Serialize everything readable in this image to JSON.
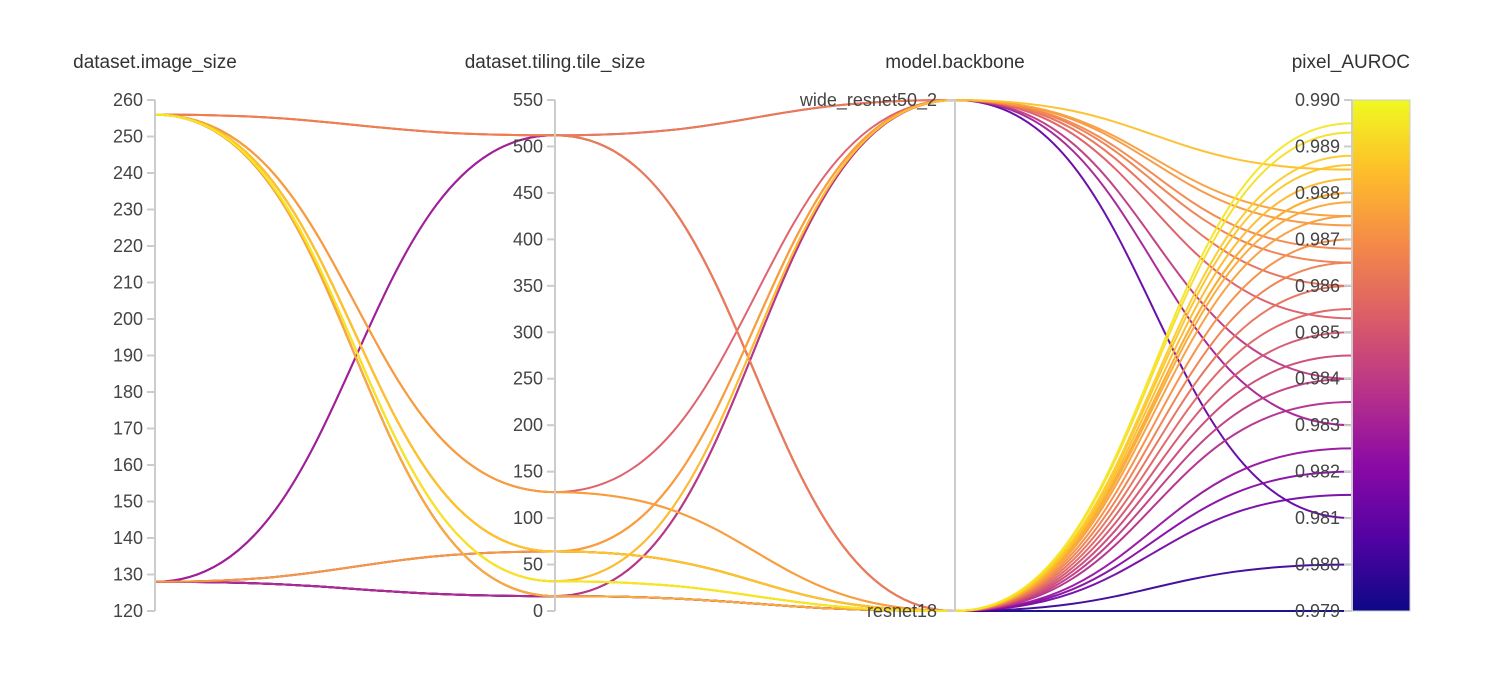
{
  "chart_data": {
    "type": "parallel_coordinates",
    "axes": [
      {
        "key": "image_size",
        "label": "dataset.image_size",
        "kind": "numeric",
        "range": [
          120,
          260
        ],
        "ticks": [
          "120",
          "130",
          "140",
          "150",
          "160",
          "170",
          "180",
          "190",
          "200",
          "210",
          "220",
          "230",
          "240",
          "250",
          "260"
        ]
      },
      {
        "key": "tile_size",
        "label": "dataset.tiling.tile_size",
        "kind": "numeric",
        "range": [
          0,
          550
        ],
        "ticks": [
          "0",
          "50",
          "100",
          "150",
          "200",
          "250",
          "300",
          "350",
          "400",
          "450",
          "500",
          "550"
        ]
      },
      {
        "key": "backbone",
        "label": "model.backbone",
        "kind": "categorical",
        "categories": [
          "resnet18",
          "wide_resnet50_2"
        ]
      },
      {
        "key": "pixel_auroc",
        "label": "pixel_AUROC",
        "kind": "numeric",
        "range": [
          0.979,
          0.99
        ],
        "ticks": [
          "0.979",
          "0.980",
          "0.981",
          "0.982",
          "0.983",
          "0.984",
          "0.985",
          "0.986",
          "0.987",
          "0.988",
          "0.989",
          "0.990"
        ]
      }
    ],
    "colorscale": {
      "metric": "pixel_auroc",
      "range": [
        0.979,
        0.99
      ],
      "stops": [
        "#0d0887",
        "#5302a3",
        "#8b0aa5",
        "#b83289",
        "#db5c68",
        "#f48849",
        "#febd2a",
        "#f0f921"
      ]
    },
    "runs": [
      {
        "image_size": 256,
        "tile_size": 512,
        "backbone": "wide_resnet50_2",
        "pixel_auroc": 0.9865
      },
      {
        "image_size": 256,
        "tile_size": 512,
        "backbone": "resnet18",
        "pixel_auroc": 0.9865
      },
      {
        "image_size": 256,
        "tile_size": 512,
        "backbone": "resnet18",
        "pixel_auroc": 0.985
      },
      {
        "image_size": 256,
        "tile_size": 128,
        "backbone": "wide_resnet50_2",
        "pixel_auroc": 0.9853
      },
      {
        "image_size": 256,
        "tile_size": 128,
        "backbone": "resnet18",
        "pixel_auroc": 0.9875
      },
      {
        "image_size": 256,
        "tile_size": 64,
        "backbone": "wide_resnet50_2",
        "pixel_auroc": 0.9873
      },
      {
        "image_size": 256,
        "tile_size": 64,
        "backbone": "resnet18",
        "pixel_auroc": 0.9855
      },
      {
        "image_size": 256,
        "tile_size": 32,
        "backbone": "wide_resnet50_2",
        "pixel_auroc": 0.9885
      },
      {
        "image_size": 256,
        "tile_size": 32,
        "backbone": "resnet18",
        "pixel_auroc": 0.988
      },
      {
        "image_size": 256,
        "tile_size": 16,
        "backbone": "resnet18",
        "pixel_auroc": 0.988
      },
      {
        "image_size": 256,
        "tile_size": 16,
        "backbone": "resnet18",
        "pixel_auroc": 0.984
      },
      {
        "image_size": 128,
        "tile_size": 512,
        "backbone": "resnet18",
        "pixel_auroc": 0.9815
      },
      {
        "image_size": 128,
        "tile_size": 512,
        "backbone": "wide_resnet50_2",
        "pixel_auroc": 0.983
      },
      {
        "image_size": 128,
        "tile_size": 64,
        "backbone": "resnet18",
        "pixel_auroc": 0.9825
      },
      {
        "image_size": 128,
        "tile_size": 64,
        "backbone": "wide_resnet50_2",
        "pixel_auroc": 0.9875
      },
      {
        "image_size": 128,
        "tile_size": 16,
        "backbone": "resnet18",
        "pixel_auroc": 0.98
      },
      {
        "image_size": 128,
        "tile_size": 16,
        "backbone": "resnet18",
        "pixel_auroc": 0.979
      },
      {
        "image_size": 128,
        "tile_size": 16,
        "backbone": "wide_resnet50_2",
        "pixel_auroc": 0.981
      },
      {
        "image_size": 256,
        "tile_size": 32,
        "backbone": "wide_resnet50_2",
        "pixel_auroc": 0.9868
      },
      {
        "image_size": 256,
        "tile_size": 64,
        "backbone": "wide_resnet50_2",
        "pixel_auroc": 0.986
      },
      {
        "image_size": 256,
        "tile_size": 16,
        "backbone": "wide_resnet50_2",
        "pixel_auroc": 0.984
      },
      {
        "image_size": 256,
        "tile_size": 32,
        "backbone": "resnet18",
        "pixel_auroc": 0.9895
      },
      {
        "image_size": 256,
        "tile_size": 32,
        "backbone": "resnet18",
        "pixel_auroc": 0.9893
      },
      {
        "image_size": 256,
        "tile_size": 32,
        "backbone": "resnet18",
        "pixel_auroc": 0.9888
      },
      {
        "image_size": 256,
        "tile_size": 64,
        "backbone": "resnet18",
        "pixel_auroc": 0.9883
      },
      {
        "image_size": 256,
        "tile_size": 64,
        "backbone": "resnet18",
        "pixel_auroc": 0.9886
      },
      {
        "image_size": 256,
        "tile_size": 64,
        "backbone": "resnet18",
        "pixel_auroc": 0.9878
      },
      {
        "image_size": 256,
        "tile_size": 128,
        "backbone": "resnet18",
        "pixel_auroc": 0.987
      },
      {
        "image_size": 256,
        "tile_size": 16,
        "backbone": "resnet18",
        "pixel_auroc": 0.986
      },
      {
        "image_size": 128,
        "tile_size": 64,
        "backbone": "resnet18",
        "pixel_auroc": 0.9845
      },
      {
        "image_size": 128,
        "tile_size": 16,
        "backbone": "resnet18",
        "pixel_auroc": 0.982
      },
      {
        "image_size": 128,
        "tile_size": 16,
        "backbone": "resnet18",
        "pixel_auroc": 0.9835
      }
    ]
  }
}
